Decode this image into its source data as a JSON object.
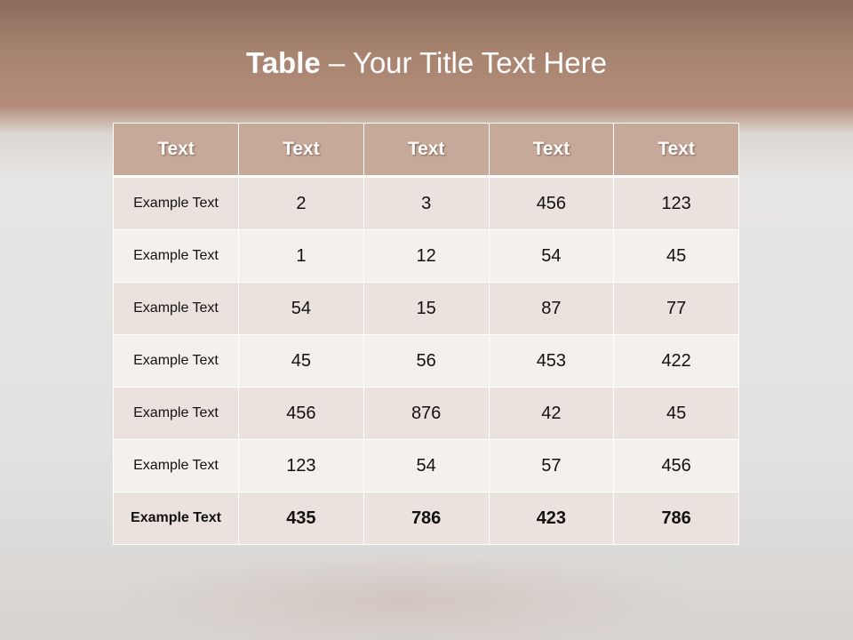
{
  "slide": {
    "title_bold": "Table",
    "title_rest": " – Your Title Text Here"
  },
  "table": {
    "headers": [
      "Text",
      "Text",
      "Text",
      "Text",
      "Text"
    ],
    "rows": [
      [
        "Example Text",
        "2",
        "3",
        "456",
        "123"
      ],
      [
        "Example Text",
        "1",
        "12",
        "54",
        "45"
      ],
      [
        "Example Text",
        "54",
        "15",
        "87",
        "77"
      ],
      [
        "Example Text",
        "45",
        "56",
        "453",
        "422"
      ],
      [
        "Example Text",
        "456",
        "876",
        "42",
        "45"
      ],
      [
        "Example Text",
        "123",
        "54",
        "57",
        "456"
      ],
      [
        "Example Text",
        "435",
        "786",
        "423",
        "786"
      ]
    ]
  },
  "colors": {
    "header": "#c7a99a",
    "row_odd": "#ebe1dd",
    "row_even": "#f4f0ee",
    "banner": "#a78470"
  }
}
